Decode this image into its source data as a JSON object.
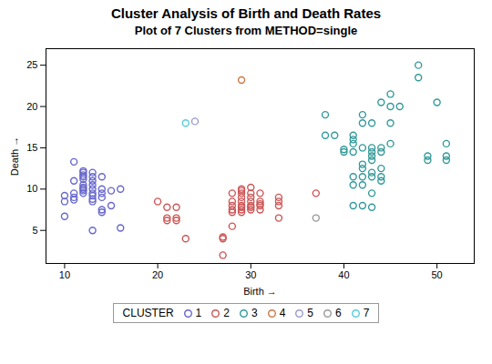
{
  "chart_data": {
    "type": "scatter",
    "title": "Cluster Analysis of Birth and Death Rates",
    "subtitle": "Plot of 7 Clusters from METHOD=single",
    "x_label": "Birth",
    "y_label": "Death",
    "xlim": [
      8,
      54
    ],
    "ylim": [
      1,
      27
    ],
    "xticks": [
      10,
      20,
      30,
      40,
      50
    ],
    "yticks": [
      5,
      10,
      15,
      20,
      25
    ],
    "marker": "circle",
    "legend": "bottom",
    "legend_title": "CLUSTER",
    "series": [
      {
        "name": "1",
        "color": "#6666CC",
        "values": [
          [
            10,
            9.2
          ],
          [
            10,
            8.5
          ],
          [
            10,
            6.7
          ],
          [
            11,
            13.3
          ],
          [
            11,
            11.0
          ],
          [
            11,
            9.5
          ],
          [
            11,
            9.0
          ],
          [
            11,
            8.7
          ],
          [
            12,
            12.2
          ],
          [
            12,
            12.0
          ],
          [
            12,
            11.7
          ],
          [
            12,
            11.5
          ],
          [
            12,
            11.2
          ],
          [
            12,
            10.5
          ],
          [
            12,
            10.2
          ],
          [
            12,
            10.0
          ],
          [
            12,
            9.8
          ],
          [
            12,
            9.5
          ],
          [
            13,
            12.0
          ],
          [
            13,
            11.5
          ],
          [
            13,
            11.0
          ],
          [
            13,
            10.5
          ],
          [
            13,
            10.0
          ],
          [
            13,
            9.5
          ],
          [
            13,
            9.2
          ],
          [
            13,
            8.8
          ],
          [
            13,
            8.5
          ],
          [
            14,
            11.5
          ],
          [
            14,
            10.0
          ],
          [
            14,
            9.5
          ],
          [
            14,
            9.0
          ],
          [
            14,
            7.5
          ],
          [
            14,
            7.2
          ],
          [
            15,
            9.8
          ],
          [
            15,
            8.0
          ],
          [
            16,
            10.0
          ],
          [
            13,
            5.0
          ],
          [
            16,
            5.3
          ]
        ]
      },
      {
        "name": "2",
        "color": "#CC5555",
        "values": [
          [
            20,
            8.5
          ],
          [
            21,
            7.8
          ],
          [
            21,
            6.5
          ],
          [
            21,
            6.2
          ],
          [
            22,
            7.8
          ],
          [
            22,
            6.5
          ],
          [
            22,
            6.2
          ],
          [
            23,
            4.0
          ],
          [
            27,
            2.0
          ],
          [
            27,
            4.0
          ],
          [
            27,
            4.2
          ],
          [
            28,
            9.5
          ],
          [
            28,
            8.5
          ],
          [
            28,
            8.0
          ],
          [
            28,
            7.5
          ],
          [
            28,
            7.2
          ],
          [
            28,
            5.5
          ],
          [
            29,
            10.0
          ],
          [
            29,
            9.8
          ],
          [
            29,
            9.5
          ],
          [
            29,
            9.0
          ],
          [
            29,
            8.5
          ],
          [
            29,
            8.0
          ],
          [
            29,
            7.8
          ],
          [
            29,
            7.5
          ],
          [
            29,
            7.2
          ],
          [
            30,
            10.2
          ],
          [
            30,
            9.5
          ],
          [
            30,
            9.0
          ],
          [
            30,
            8.5
          ],
          [
            30,
            8.0
          ],
          [
            30,
            7.8
          ],
          [
            30,
            7.5
          ],
          [
            31,
            9.5
          ],
          [
            31,
            8.5
          ],
          [
            31,
            8.2
          ],
          [
            31,
            8.0
          ],
          [
            31,
            7.5
          ],
          [
            33,
            9.0
          ],
          [
            33,
            8.5
          ],
          [
            33,
            8.0
          ],
          [
            33,
            6.5
          ],
          [
            37,
            9.5
          ]
        ]
      },
      {
        "name": "3",
        "color": "#339999",
        "values": [
          [
            38,
            19.0
          ],
          [
            38,
            16.5
          ],
          [
            39,
            16.5
          ],
          [
            40,
            14.8
          ],
          [
            40,
            14.5
          ],
          [
            41,
            16.5
          ],
          [
            41,
            16.0
          ],
          [
            41,
            15.5
          ],
          [
            41,
            14.5
          ],
          [
            41,
            11.5
          ],
          [
            41,
            10.5
          ],
          [
            41,
            8.0
          ],
          [
            42,
            19.0
          ],
          [
            42,
            18.0
          ],
          [
            42,
            15.0
          ],
          [
            42,
            13.0
          ],
          [
            42,
            12.5
          ],
          [
            42,
            11.5
          ],
          [
            42,
            10.5
          ],
          [
            42,
            8.0
          ],
          [
            43,
            18.0
          ],
          [
            43,
            15.0
          ],
          [
            43,
            14.5
          ],
          [
            43,
            14.0
          ],
          [
            43,
            13.5
          ],
          [
            43,
            12.0
          ],
          [
            43,
            11.5
          ],
          [
            43,
            9.5
          ],
          [
            43,
            7.8
          ],
          [
            44,
            20.5
          ],
          [
            44,
            15.0
          ],
          [
            44,
            14.5
          ],
          [
            44,
            12.5
          ],
          [
            44,
            11.5
          ],
          [
            44,
            11.0
          ],
          [
            45,
            21.5
          ],
          [
            45,
            20.0
          ],
          [
            45,
            18.0
          ],
          [
            45,
            15.5
          ],
          [
            46,
            20.0
          ],
          [
            48,
            23.5
          ],
          [
            48,
            25.0
          ],
          [
            49,
            14.0
          ],
          [
            49,
            13.5
          ],
          [
            50,
            20.5
          ],
          [
            51,
            15.5
          ],
          [
            51,
            14.0
          ],
          [
            51,
            13.5
          ]
        ]
      },
      {
        "name": "4",
        "color": "#CC7744",
        "values": [
          [
            29,
            23.2
          ]
        ]
      },
      {
        "name": "5",
        "color": "#9999CC",
        "values": [
          [
            24,
            18.2
          ]
        ]
      },
      {
        "name": "6",
        "color": "#999999",
        "values": [
          [
            37,
            6.5
          ]
        ]
      },
      {
        "name": "7",
        "color": "#55CCDD",
        "values": [
          [
            23,
            18.0
          ]
        ]
      }
    ]
  }
}
